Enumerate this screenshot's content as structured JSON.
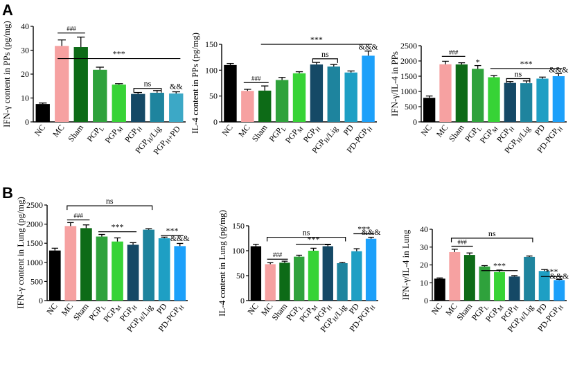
{
  "panel_labels": [
    "A",
    "B"
  ],
  "chart_data": [
    {
      "type": "bar",
      "id": "A1",
      "ylabel": "IFN-γ content in PPs (pg/mg)",
      "ylim": [
        0,
        40
      ],
      "yticks": [
        0,
        10,
        20,
        30,
        40
      ],
      "categories": [
        "NC",
        "MC",
        "Sham",
        "PGPL",
        "PGPM",
        "PGPH",
        "PGPH/Lig",
        "PGPH+PD"
      ],
      "values": [
        7.5,
        31.8,
        31.3,
        21.8,
        15.6,
        11.7,
        12.2,
        11.9
      ],
      "errors": [
        0.4,
        2.5,
        4.2,
        1.1,
        0.4,
        0.6,
        0.9,
        0.7
      ],
      "colors": [
        "#000000",
        "#F6A1A1",
        "#0D6B17",
        "#2FA23C",
        "#37D336",
        "#154966",
        "#1E849E",
        "#3CA8C6"
      ],
      "annotations": [
        {
          "text": "###",
          "small": true,
          "x1": 1,
          "x2": 2,
          "y": 37.2
        },
        {
          "text": "***",
          "x1": 1,
          "x2": 7,
          "y": 26.5
        },
        {
          "text": "ns",
          "bracket": true,
          "x1": 5,
          "x2": 6,
          "y": 14
        },
        {
          "text": "&&",
          "at": 7,
          "y": 13.8
        }
      ]
    },
    {
      "type": "bar",
      "id": "A2",
      "ylabel": "IL-4 content in PPs (pg/mg)",
      "ylim": [
        0,
        150
      ],
      "yticks": [
        0,
        50,
        100,
        150
      ],
      "categories": [
        "NC",
        "MC",
        "Sham",
        "PGPL",
        "PGPM",
        "PGPH",
        "PGPH/Lig",
        "PD",
        "PD-PGPH"
      ],
      "values": [
        110,
        60,
        60.5,
        81,
        94,
        111,
        107,
        95.5,
        128
      ],
      "errors": [
        3,
        3,
        9,
        5,
        3,
        4,
        4,
        3,
        9
      ],
      "colors": [
        "#000000",
        "#F6A1A1",
        "#0D6B17",
        "#2FA23C",
        "#37D336",
        "#154966",
        "#1E849E",
        "#1E9FC4",
        "#1CA0FA"
      ],
      "annotations": [
        {
          "text": "###",
          "small": true,
          "x1": 1,
          "x2": 2,
          "y": 76
        },
        {
          "text": "***",
          "x1": 2,
          "x2": 8,
          "y": 150
        },
        {
          "text": "ns",
          "bracket": true,
          "x1": 5,
          "x2": 6,
          "y": 122
        },
        {
          "text": "&&&",
          "at": 8,
          "y": 140
        }
      ]
    },
    {
      "type": "bar",
      "id": "A3",
      "ylabel": "IFN-γ/IL-4 in PPs",
      "ylim": [
        0,
        2500
      ],
      "yticks": [
        0,
        500,
        1000,
        1500,
        2000,
        2500
      ],
      "categories": [
        "NC",
        "MC",
        "Sham",
        "PGPL",
        "PGPM",
        "PGPH",
        "PGPH/Lig",
        "PD",
        "PD-PGPH"
      ],
      "values": [
        790,
        1890,
        1885,
        1740,
        1465,
        1280,
        1270,
        1420,
        1500
      ],
      "errors": [
        60,
        100,
        55,
        110,
        55,
        45,
        75,
        50,
        85
      ],
      "colors": [
        "#000000",
        "#F6A1A1",
        "#0D6B17",
        "#2FA23C",
        "#37D336",
        "#154966",
        "#1E849E",
        "#1E9FC4",
        "#1CA0FA"
      ],
      "annotations": [
        {
          "text": "###",
          "small": true,
          "x1": 1,
          "x2": 2,
          "y": 2150
        },
        {
          "text": "*",
          "at": 3,
          "y": 1880
        },
        {
          "text": "***",
          "x1": 4,
          "x2": 8,
          "y": 1750
        },
        {
          "text": "ns",
          "bracket": true,
          "x1": 5,
          "x2": 6,
          "y": 1420
        },
        {
          "text": "&&&",
          "at": 8,
          "y": 1630
        }
      ]
    },
    {
      "type": "bar",
      "id": "B1",
      "ylabel": "IFN-γ content in Lung (pg/mg)",
      "ylim": [
        0,
        2500
      ],
      "yticks": [
        0,
        500,
        1000,
        1500,
        2000,
        2500
      ],
      "categories": [
        "NC",
        "MC",
        "Sham",
        "PGPL",
        "PGPM",
        "PGPH",
        "PGPH/Lig",
        "PD",
        "PD-PGPH"
      ],
      "values": [
        1310,
        1950,
        1895,
        1675,
        1545,
        1460,
        1855,
        1630,
        1425
      ],
      "errors": [
        60,
        90,
        85,
        55,
        95,
        55,
        25,
        30,
        70
      ],
      "colors": [
        "#000000",
        "#F6A1A1",
        "#0D6B17",
        "#2FA23C",
        "#37D336",
        "#154966",
        "#1E849E",
        "#1E9FC4",
        "#1CA0FA"
      ],
      "annotations": [
        {
          "text": "ns",
          "bracket": true,
          "x1": 1,
          "x2": 6,
          "y": 2480
        },
        {
          "text": "###",
          "small": true,
          "x1": 1,
          "x2": 2,
          "y": 2110
        },
        {
          "text": "***",
          "x1": 3,
          "x2": 5,
          "y": 1800
        },
        {
          "text": "***",
          "x1": 7,
          "x2": 8,
          "y": 1700
        },
        {
          "text": "&&&",
          "at": 8,
          "y": 1560
        }
      ]
    },
    {
      "type": "bar",
      "id": "B2",
      "ylabel": "IL-4 content in Lung (pg/mg)",
      "ylim": [
        0,
        150
      ],
      "yticks": [
        0,
        50,
        100,
        150
      ],
      "categories": [
        "NC",
        "MC",
        "Sham",
        "PGPL",
        "PGPM",
        "PGPH",
        "PGPH/Lig",
        "PD",
        "PD-PGPH"
      ],
      "values": [
        109,
        73,
        76,
        88,
        100,
        109,
        75,
        99,
        124
      ],
      "errors": [
        4,
        3,
        3,
        3,
        5,
        3,
        1.5,
        5,
        3
      ],
      "colors": [
        "#000000",
        "#F6A1A1",
        "#0D6B17",
        "#2FA23C",
        "#37D336",
        "#154966",
        "#1E849E",
        "#1E9FC4",
        "#1CA0FA"
      ],
      "annotations": [
        {
          "text": "ns",
          "bracket": true,
          "x1": 1,
          "x2": 6,
          "y": 127
        },
        {
          "text": "###",
          "small": true,
          "x1": 1,
          "x2": 2,
          "y": 83
        },
        {
          "text": "***",
          "x1": 3,
          "x2": 5,
          "y": 113
        },
        {
          "text": "***",
          "x1": 7,
          "x2": 8,
          "y": 134
        },
        {
          "text": "&&&",
          "at": 8,
          "y": 132
        }
      ]
    },
    {
      "type": "bar",
      "id": "B3",
      "ylabel": "IFN-γ/IL-4 in Lung",
      "ylim": [
        0,
        40
      ],
      "yticks": [
        0,
        10,
        20,
        30,
        40
      ],
      "categories": [
        "NC",
        "MC",
        "Sham",
        "PGPL",
        "PGPM",
        "PGPH",
        "PGPH/Lig",
        "PD",
        "PD-PGPH"
      ],
      "values": [
        12.3,
        27.2,
        25.6,
        19.1,
        16,
        13.5,
        24.5,
        16.6,
        11.5
      ],
      "errors": [
        0.4,
        1.6,
        1.1,
        0.5,
        1.1,
        0.5,
        0.5,
        0.8,
        0.4
      ],
      "colors": [
        "#000000",
        "#F6A1A1",
        "#0D6B17",
        "#2FA23C",
        "#37D336",
        "#154966",
        "#1E849E",
        "#1E9FC4",
        "#1CA0FA"
      ],
      "annotations": [
        {
          "text": "ns",
          "bracket": true,
          "x1": 1,
          "x2": 6,
          "y": 35
        },
        {
          "text": "###",
          "small": true,
          "x1": 1,
          "x2": 2,
          "y": 30.5
        },
        {
          "text": "***",
          "x1": 3,
          "x2": 5,
          "y": 16.8
        },
        {
          "text": "***",
          "x1": 7,
          "x2": 8,
          "y": 13.5
        },
        {
          "text": "&&&",
          "at": 8,
          "y": 12.3
        }
      ]
    }
  ]
}
